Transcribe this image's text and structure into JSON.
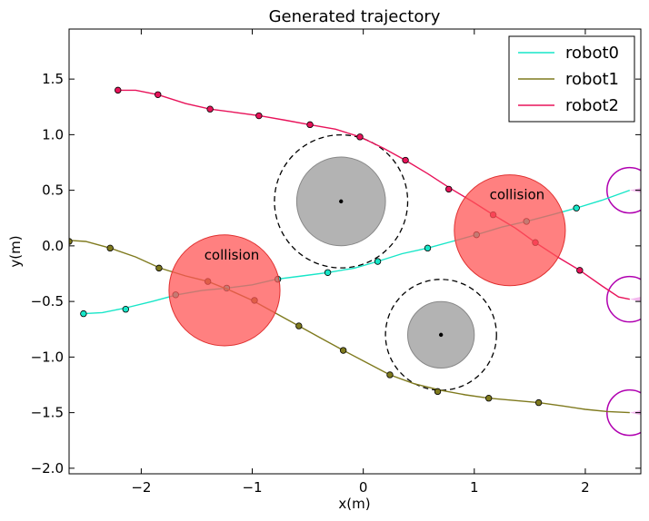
{
  "chart_data": {
    "type": "line",
    "title": "Generated trajectory",
    "xlabel": "x(m)",
    "ylabel": "y(m)",
    "xlim": [
      -2.65,
      2.5
    ],
    "ylim": [
      -2.05,
      1.95
    ],
    "x_ticks": [
      -2,
      -1,
      0,
      1,
      2
    ],
    "y_ticks": [
      1.5,
      1.0,
      0.5,
      0.0,
      -0.5,
      -1.0,
      -1.5,
      -2.0
    ],
    "x_tick_labels": [
      "−2",
      "−1",
      "0",
      "1",
      "2"
    ],
    "y_tick_labels": [
      "1.5",
      "1.0",
      "0.5",
      "0.0",
      "−0.5",
      "−1.0",
      "−1.5",
      "−2.0"
    ],
    "grid": false,
    "legend_position": "top-right",
    "series": [
      {
        "name": "robot0",
        "color": "#17e6c8",
        "points": [
          [
            -2.52,
            -0.61
          ],
          [
            -2.35,
            -0.6
          ],
          [
            -2.15,
            -0.56
          ],
          [
            -1.9,
            -0.5
          ],
          [
            -1.68,
            -0.44
          ],
          [
            -1.45,
            -0.4
          ],
          [
            -1.23,
            -0.38
          ],
          [
            -1.0,
            -0.35
          ],
          [
            -0.78,
            -0.3
          ],
          [
            -0.55,
            -0.27
          ],
          [
            -0.32,
            -0.24
          ],
          [
            -0.08,
            -0.2
          ],
          [
            0.13,
            -0.14
          ],
          [
            0.35,
            -0.07
          ],
          [
            0.58,
            -0.02
          ],
          [
            0.8,
            0.04
          ],
          [
            1.02,
            0.1
          ],
          [
            1.25,
            0.17
          ],
          [
            1.47,
            0.22
          ],
          [
            1.7,
            0.28
          ],
          [
            1.92,
            0.34
          ],
          [
            2.15,
            0.41
          ],
          [
            2.4,
            0.5
          ]
        ],
        "markers": [
          [
            -2.52,
            -0.61
          ],
          [
            -2.14,
            -0.57
          ],
          [
            -1.69,
            -0.44
          ],
          [
            -1.23,
            -0.38
          ],
          [
            -0.77,
            -0.3
          ],
          [
            -0.32,
            -0.24
          ],
          [
            0.13,
            -0.14
          ],
          [
            0.58,
            -0.02
          ],
          [
            1.02,
            0.1
          ],
          [
            1.47,
            0.22
          ],
          [
            1.92,
            0.34
          ]
        ]
      },
      {
        "name": "robot1",
        "color": "#7f7a1e",
        "points": [
          [
            -2.65,
            0.05
          ],
          [
            -2.5,
            0.04
          ],
          [
            -2.28,
            -0.02
          ],
          [
            -2.05,
            -0.1
          ],
          [
            -1.83,
            -0.2
          ],
          [
            -1.6,
            -0.27
          ],
          [
            -1.4,
            -0.32
          ],
          [
            -1.2,
            -0.4
          ],
          [
            -1.0,
            -0.49
          ],
          [
            -0.8,
            -0.6
          ],
          [
            -0.58,
            -0.72
          ],
          [
            -0.38,
            -0.83
          ],
          [
            -0.18,
            -0.94
          ],
          [
            0.03,
            -1.05
          ],
          [
            0.24,
            -1.16
          ],
          [
            0.46,
            -1.24
          ],
          [
            0.7,
            -1.3
          ],
          [
            0.92,
            -1.34
          ],
          [
            1.13,
            -1.37
          ],
          [
            1.35,
            -1.39
          ],
          [
            1.58,
            -1.41
          ],
          [
            1.8,
            -1.44
          ],
          [
            2.0,
            -1.47
          ],
          [
            2.2,
            -1.49
          ],
          [
            2.4,
            -1.5
          ]
        ],
        "markers": [
          [
            -2.65,
            0.04
          ],
          [
            -2.28,
            -0.02
          ],
          [
            -1.84,
            -0.2
          ],
          [
            -1.4,
            -0.32
          ],
          [
            -0.98,
            -0.49
          ],
          [
            -0.58,
            -0.72
          ],
          [
            -0.18,
            -0.94
          ],
          [
            0.24,
            -1.16
          ],
          [
            0.67,
            -1.31
          ],
          [
            1.13,
            -1.37
          ],
          [
            1.58,
            -1.41
          ]
        ]
      },
      {
        "name": "robot2",
        "color": "#e8135a",
        "points": [
          [
            -2.21,
            1.4
          ],
          [
            -2.05,
            1.4
          ],
          [
            -1.85,
            1.36
          ],
          [
            -1.6,
            1.28
          ],
          [
            -1.38,
            1.23
          ],
          [
            -1.15,
            1.2
          ],
          [
            -0.93,
            1.17
          ],
          [
            -0.7,
            1.13
          ],
          [
            -0.48,
            1.09
          ],
          [
            -0.25,
            1.05
          ],
          [
            -0.03,
            0.98
          ],
          [
            0.18,
            0.88
          ],
          [
            0.38,
            0.77
          ],
          [
            0.58,
            0.65
          ],
          [
            0.78,
            0.52
          ],
          [
            0.98,
            0.4
          ],
          [
            1.17,
            0.28
          ],
          [
            1.37,
            0.16
          ],
          [
            1.55,
            0.03
          ],
          [
            1.75,
            -0.1
          ],
          [
            1.95,
            -0.22
          ],
          [
            2.15,
            -0.36
          ],
          [
            2.3,
            -0.46
          ],
          [
            2.4,
            -0.48
          ]
        ],
        "markers": [
          [
            -2.21,
            1.4
          ],
          [
            -1.85,
            1.36
          ],
          [
            -1.38,
            1.23
          ],
          [
            -0.94,
            1.17
          ],
          [
            -0.48,
            1.09
          ],
          [
            -0.03,
            0.98
          ],
          [
            0.38,
            0.77
          ],
          [
            0.77,
            0.51
          ],
          [
            1.17,
            0.28
          ],
          [
            1.55,
            0.03
          ],
          [
            1.95,
            -0.22
          ]
        ]
      }
    ],
    "obstacles": [
      {
        "x": -0.2,
        "y": 0.4,
        "radius": 0.4,
        "safety_radius": 0.6,
        "color": "#b3b3b3"
      },
      {
        "x": 0.7,
        "y": -0.8,
        "radius": 0.3,
        "safety_radius": 0.5,
        "color": "#b3b3b3"
      }
    ],
    "collisions": [
      {
        "label": "collision",
        "x": -1.25,
        "y": -0.4,
        "radius": 0.5,
        "color": "#ff5555"
      },
      {
        "label": "collision",
        "x": 1.32,
        "y": 0.14,
        "radius": 0.5,
        "color": "#ff5555"
      }
    ],
    "goals": [
      {
        "x": 2.4,
        "y": 0.5,
        "color": "#b000b0",
        "fill": "#f0a6ea"
      },
      {
        "x": 2.4,
        "y": -0.48,
        "color": "#b000b0",
        "fill": "#f0a6ea"
      },
      {
        "x": 2.4,
        "y": -1.5,
        "color": "#b000b0",
        "fill": "#f0a6ea"
      }
    ]
  }
}
